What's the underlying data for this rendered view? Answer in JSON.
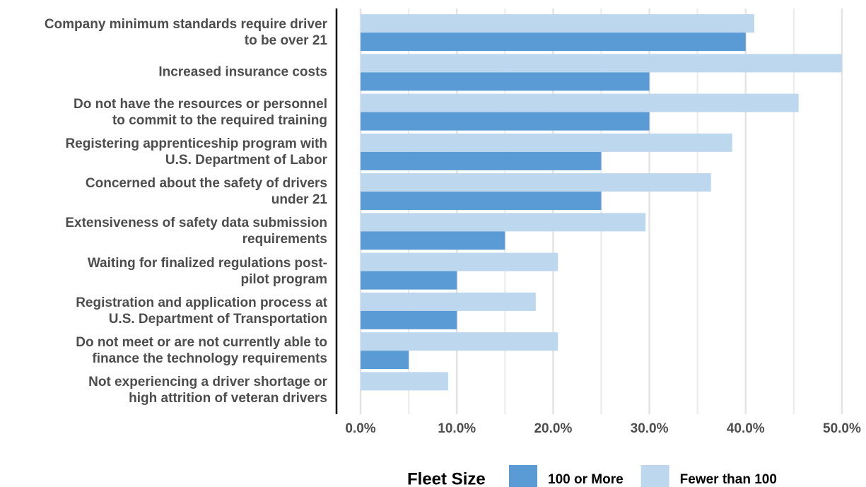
{
  "chart_data": {
    "type": "barh",
    "categories": [
      "Company minimum standards require driver\nto be over 21",
      "Increased insurance costs",
      "Do not have the resources or personnel\nto commit to the required training",
      "Registering apprenticeship program with\nU.S. Department of Labor",
      "Concerned about the safety of drivers\nunder 21",
      "Extensiveness of safety data submission\nrequirements",
      "Waiting for finalized regulations post-\npilot program",
      "Registration and application process at\nU.S. Department of Transportation",
      "Do not meet or are not currently able to\nfinance the technology requirements",
      "Not experiencing a driver shortage or\nhigh attrition of veteran drivers"
    ],
    "series": [
      {
        "name": "Fewer than 100",
        "color": "#bdd7ee",
        "values": [
          40.9,
          50.0,
          45.5,
          38.6,
          36.4,
          29.6,
          20.5,
          18.2,
          20.5,
          9.1
        ]
      },
      {
        "name": "100 or More",
        "color": "#5b9bd5",
        "values": [
          40,
          30,
          30,
          25,
          25,
          15,
          10,
          10,
          5,
          0
        ]
      }
    ],
    "legend_title": "Fleet Size",
    "legend_order": [
      1,
      0
    ],
    "xlim": [
      -2.5,
      52.5
    ],
    "xticks": [
      {
        "value": 0,
        "label": "0.0%"
      },
      {
        "value": 10,
        "label": "10.0%"
      },
      {
        "value": 20,
        "label": "20.0%"
      },
      {
        "value": 30,
        "label": "30.0%"
      },
      {
        "value": 40,
        "label": "40.0%"
      },
      {
        "value": 50,
        "label": "50.0%"
      }
    ],
    "minor_xticks": [
      5,
      15,
      25,
      35,
      45
    ],
    "grid": true,
    "legend": "bottom"
  }
}
